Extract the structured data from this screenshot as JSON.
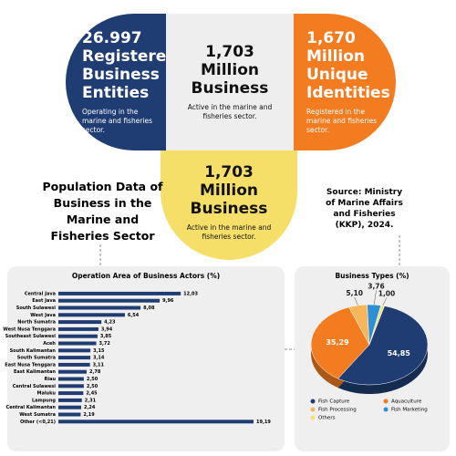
{
  "cards": [
    {
      "value": "26.997",
      "label": "Registered Business Entities",
      "note": "Operating in the marine and fisheries sector."
    },
    {
      "value": "1,703",
      "label": "Million Business",
      "note": "Active in the marine and fisheries sector."
    },
    {
      "value": "1,670",
      "label": "Million Unique Identities",
      "note": "Registered in the marine and fisheries sector."
    },
    {
      "value": "1,703",
      "label": "Million Business",
      "note": "Active in the marine and fisheries sector."
    }
  ],
  "heading": "Population Data of Business in the Marine and Fisheries Sector",
  "source": "Source: Ministry of Marine Affairs and Fisheries (KKP), 2024.",
  "chart_data": [
    {
      "type": "bar",
      "title": "Operation Area of Business Actors (%)",
      "color": "#1f3d73",
      "categories": [
        "Central Java",
        "East Java",
        "South Sulawesi",
        "West Java",
        "North Sumatra",
        "West Nusa Tenggara",
        "Southeast Sulawesi",
        "Aceh",
        "South Kalimantan",
        "South Sumatra",
        "East Nusa Tenggara",
        "East Kalimantan",
        "Riau",
        "Central Sulawesi",
        "Maluku",
        "Lampung",
        "Central Kalimantan",
        "West Sumatra",
        "Other (<0,21)"
      ],
      "values": [
        12.03,
        9.96,
        8.08,
        6.54,
        4.23,
        3.94,
        3.85,
        3.72,
        3.15,
        3.14,
        3.11,
        2.78,
        2.5,
        2.5,
        2.45,
        2.31,
        2.24,
        2.19,
        19.19
      ],
      "value_labels": [
        "12,03",
        "9,96",
        "8,08",
        "6,54",
        "4,23",
        "3,94",
        "3,85",
        "3,72",
        "3,15",
        "3,14",
        "3,11",
        "2,78",
        "2,50",
        "2,50",
        "2,45",
        "2,31",
        "2,24",
        "2,19",
        "19,19"
      ]
    },
    {
      "type": "pie",
      "title": "Business Types (%)",
      "categories": [
        "Fish Capture",
        "Aquaculture",
        "Fish Processing",
        "Fish Marketing",
        "Others"
      ],
      "values": [
        54.85,
        35.29,
        5.1,
        3.76,
        1.0
      ],
      "value_labels": [
        "54,85",
        "35,29",
        "5,10",
        "3,76",
        "1,00"
      ],
      "colors": [
        "#1f3d73",
        "#f47c20",
        "#f7b65c",
        "#2d8fd6",
        "#f2e27a"
      ]
    }
  ]
}
